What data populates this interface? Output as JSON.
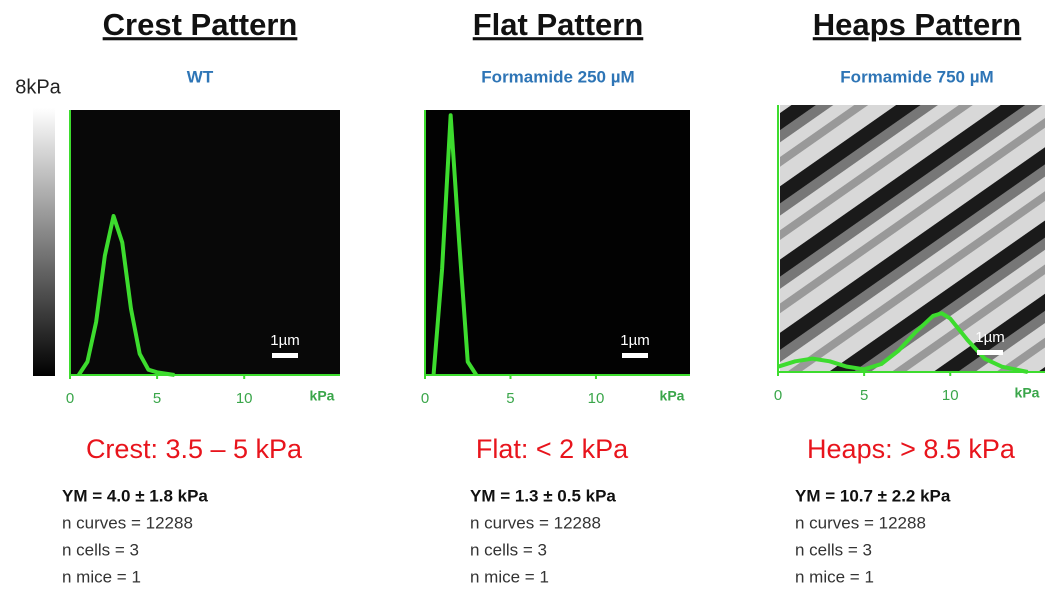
{
  "colorbar_label": "8kPa",
  "chart_data": [
    {
      "type": "line",
      "title": "Crest Pattern",
      "subtitle": "WT",
      "annotation": "Crest: 3.5 – 5 kPa",
      "stats": [
        "YM = 4.0 ± 1.8 kPa",
        "n curves = 12288",
        "n cells = 3",
        "n mice = 1"
      ],
      "scale_bar": "1µm",
      "x_label": "kPa",
      "x": [
        0.5,
        1,
        1.5,
        2,
        2.5,
        3,
        3.5,
        4,
        4.5,
        5,
        6
      ],
      "series": [
        {
          "color": "#3ddc2e",
          "values": [
            0,
            0.05,
            0.2,
            0.45,
            0.6,
            0.5,
            0.25,
            0.08,
            0.02,
            0.01,
            0
          ]
        }
      ],
      "xlim": [
        0,
        15.5
      ],
      "ylim": [
        0,
        1
      ],
      "xticks": [
        0,
        5,
        10
      ]
    },
    {
      "type": "line",
      "title": "Flat Pattern",
      "subtitle": "Formamide 250 µM",
      "annotation": "Flat: < 2 kPa",
      "stats": [
        "YM = 1.3 ± 0.5 kPa",
        "n curves = 12288",
        "n cells = 3",
        "n mice = 1"
      ],
      "scale_bar": "1µm",
      "x_label": "kPa",
      "x": [
        0.5,
        1,
        1.5,
        2,
        2.5,
        3
      ],
      "series": [
        {
          "color": "#3ddc2e",
          "values": [
            0,
            0.4,
            0.98,
            0.5,
            0.05,
            0
          ]
        }
      ],
      "xlim": [
        0,
        15.5
      ],
      "ylim": [
        0,
        1
      ],
      "xticks": [
        0,
        5,
        10
      ]
    },
    {
      "type": "line",
      "title": "Heaps Pattern",
      "subtitle": "Formamide 750 µM",
      "annotation": "Heaps: > 8.5 kPa",
      "stats": [
        "YM = 10.7 ± 2.2 kPa",
        "n curves = 12288",
        "n cells = 3",
        "n mice = 1"
      ],
      "scale_bar": "1µm",
      "x_label": "kPa",
      "x": [
        0,
        1,
        2,
        3,
        4,
        5,
        6,
        7,
        8,
        9,
        9.5,
        10,
        11,
        12,
        13,
        14.5
      ],
      "series": [
        {
          "color": "#3ddc2e",
          "values": [
            0.02,
            0.04,
            0.05,
            0.04,
            0.02,
            0.01,
            0.03,
            0.08,
            0.15,
            0.21,
            0.22,
            0.2,
            0.12,
            0.05,
            0.02,
            0
          ]
        }
      ],
      "xlim": [
        0,
        15.5
      ],
      "ylim": [
        0,
        1
      ],
      "xticks": [
        0,
        5,
        10
      ]
    }
  ]
}
